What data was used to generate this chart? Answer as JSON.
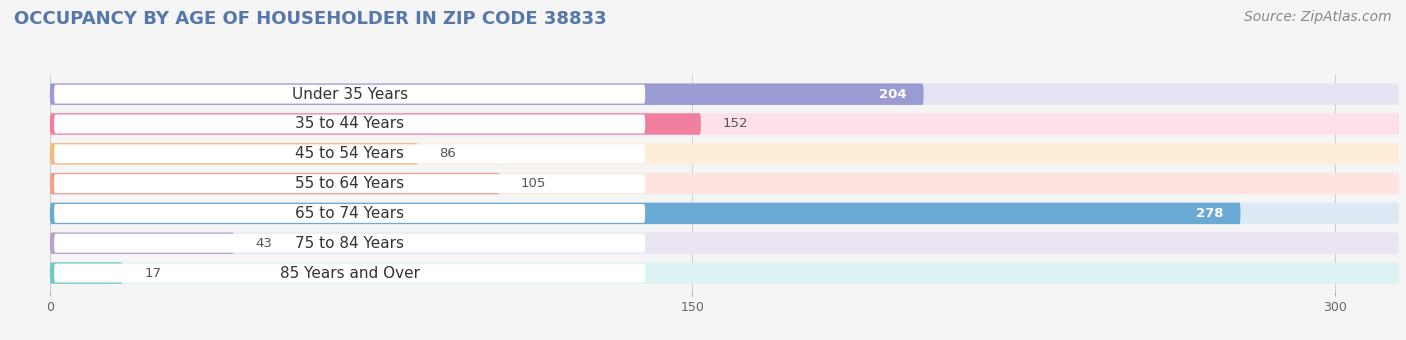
{
  "title": "OCCUPANCY BY AGE OF HOUSEHOLDER IN ZIP CODE 38833",
  "source": "Source: ZipAtlas.com",
  "categories": [
    "Under 35 Years",
    "35 to 44 Years",
    "45 to 54 Years",
    "55 to 64 Years",
    "65 to 74 Years",
    "75 to 84 Years",
    "85 Years and Over"
  ],
  "values": [
    204,
    152,
    86,
    105,
    278,
    43,
    17
  ],
  "bar_colors": [
    "#9b9bd4",
    "#f07fa0",
    "#f5b87a",
    "#f0a090",
    "#6aaad4",
    "#b8a0d0",
    "#72c8c8"
  ],
  "bar_bg_colors": [
    "#e4e4f4",
    "#fde0e8",
    "#fdecd8",
    "#fde4de",
    "#ddeaf6",
    "#ebe4f2",
    "#ddf2f2"
  ],
  "label_pill_color": "#ffffff",
  "xlim": [
    -10,
    315
  ],
  "xticks": [
    0,
    150,
    300
  ],
  "title_fontsize": 13,
  "source_fontsize": 10,
  "label_fontsize": 11,
  "value_fontsize": 9.5,
  "background_color": "#f5f5f5"
}
